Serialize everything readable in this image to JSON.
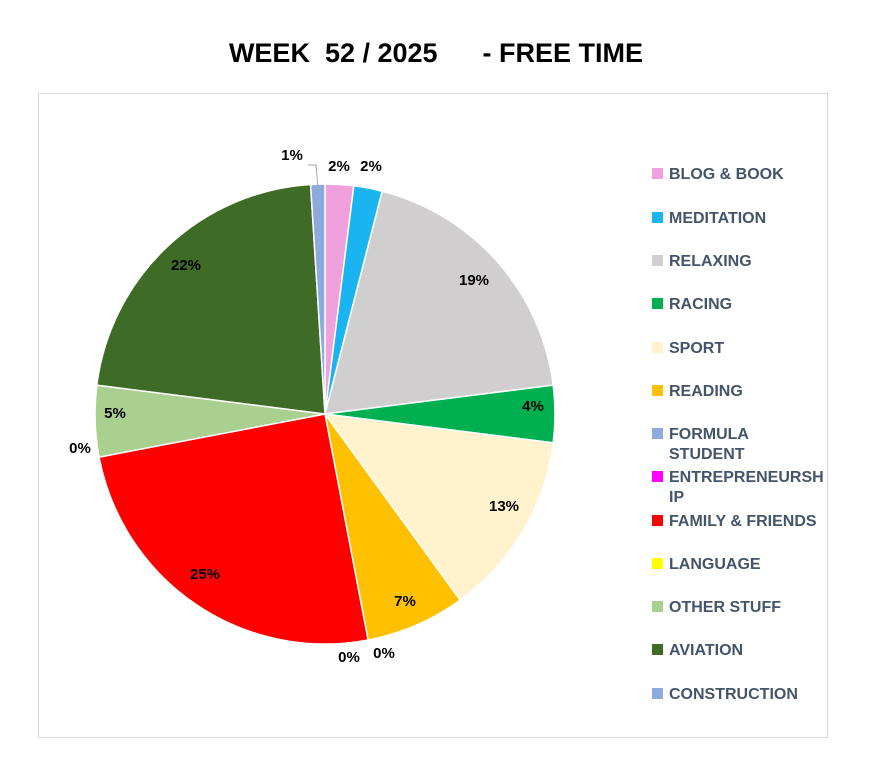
{
  "chart_data": {
    "type": "pie",
    "title": "WEEK  52 / 2025      - FREE TIME",
    "legend_position": "right",
    "slices": [
      {
        "name": "BLOG & BOOK",
        "value": 2,
        "label": "2%",
        "color": "#f0a0dc"
      },
      {
        "name": "MEDITATION",
        "value": 2,
        "label": "2%",
        "color": "#1ab4f0"
      },
      {
        "name": "RELAXING",
        "value": 19,
        "label": "19%",
        "color": "#d0cece"
      },
      {
        "name": "RACING",
        "value": 4,
        "label": "4%",
        "color": "#00b050"
      },
      {
        "name": "SPORT",
        "value": 13,
        "label": "13%",
        "color": "#fff2cc"
      },
      {
        "name": "READING",
        "value": 7,
        "label": "7%",
        "color": "#ffc000"
      },
      {
        "name": "FORMULA STUDENT",
        "value": 0,
        "label": "0%",
        "color": "#8ea9db"
      },
      {
        "name": "ENTREPRENEURSHIP",
        "value": 0,
        "label": "0%",
        "color": "#ff00ff"
      },
      {
        "name": "FAMILY & FRIENDS",
        "value": 25,
        "label": "25%",
        "color": "#ff0000"
      },
      {
        "name": "LANGUAGE",
        "value": 0,
        "label": "0%",
        "color": "#ffff00"
      },
      {
        "name": "OTHER STUFF",
        "value": 5,
        "label": "5%",
        "color": "#a9d08e"
      },
      {
        "name": "AVIATION",
        "value": 22,
        "label": "22%",
        "color": "#3e6b25"
      },
      {
        "name": "CONSTRUCTION",
        "value": 1,
        "label": "1%",
        "color": "#8ea9db"
      }
    ],
    "legend_lines": [
      [
        "BLOG & BOOK"
      ],
      [
        "MEDITATION"
      ],
      [
        "RELAXING"
      ],
      [
        "RACING"
      ],
      [
        "SPORT"
      ],
      [
        "READING"
      ],
      [
        "FORMULA",
        "STUDENT"
      ],
      [
        "ENTREPRENEURSH",
        "IP"
      ],
      [
        "FAMILY & FRIENDS"
      ],
      [
        "LANGUAGE"
      ],
      [
        "OTHER STUFF"
      ],
      [
        "AVIATION"
      ],
      [
        "CONSTRUCTION"
      ]
    ]
  }
}
